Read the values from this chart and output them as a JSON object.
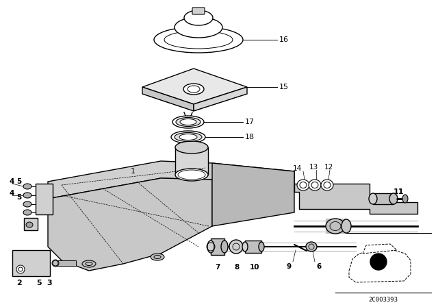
{
  "bg_color": "#ffffff",
  "line_color": "#000000",
  "diagram_id": "2C003393",
  "fig_w": 6.4,
  "fig_h": 4.48,
  "dpi": 100
}
